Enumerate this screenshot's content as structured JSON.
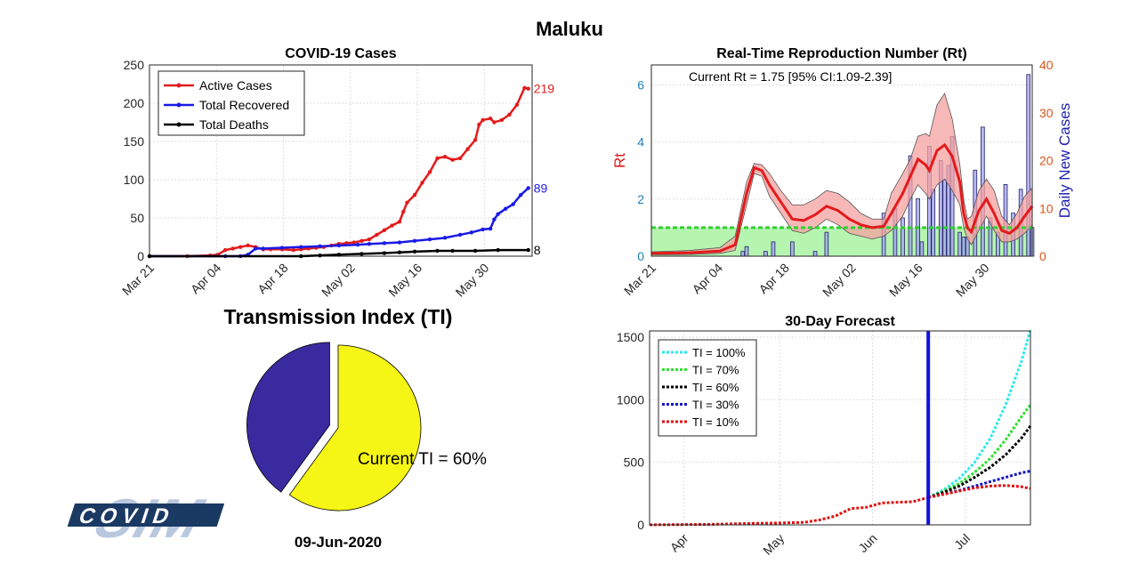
{
  "page": {
    "title": "Maluku",
    "date": "09-Jun-2020",
    "logo_text": "COVID"
  },
  "colors": {
    "active": "#e31a1c",
    "recovered": "#1a1ae6",
    "deaths": "#000000",
    "rt": "#e31a1c",
    "band": "#f4a0a0",
    "cases_bar": "#a0a0f0",
    "threshold": "#2fd12f",
    "threshold_fill": "#b5f5b0",
    "pie_a": "#3a2aa0",
    "pie_b": "#f5f516",
    "forecast_line": "#1010e0"
  },
  "chart_data": [
    {
      "id": "cases",
      "type": "line",
      "title": "COVID-19 Cases",
      "x_ticks": [
        "Mar 21",
        "Apr 04",
        "Apr 18",
        "May 02",
        "May 16",
        "May 30"
      ],
      "ylim": [
        0,
        250
      ],
      "y_ticks": [
        0,
        50,
        100,
        150,
        200,
        250
      ],
      "grid": true,
      "legend": "top-left",
      "series": [
        {
          "name": "Active Cases",
          "end_label": "219",
          "points": [
            [
              0,
              0
            ],
            [
              10,
              0
            ],
            [
              16,
              1
            ],
            [
              18,
              2
            ],
            [
              20,
              8
            ],
            [
              22,
              10
            ],
            [
              24,
              12
            ],
            [
              26,
              14
            ],
            [
              28,
              12
            ],
            [
              30,
              9
            ],
            [
              32,
              9
            ],
            [
              35,
              9
            ],
            [
              38,
              8
            ],
            [
              40,
              9
            ],
            [
              42,
              10
            ],
            [
              44,
              11
            ],
            [
              46,
              12
            ],
            [
              48,
              14
            ],
            [
              50,
              16
            ],
            [
              52,
              17
            ],
            [
              54,
              18
            ],
            [
              56,
              20
            ],
            [
              58,
              22
            ],
            [
              60,
              28
            ],
            [
              62,
              34
            ],
            [
              64,
              40
            ],
            [
              66,
              45
            ],
            [
              67,
              58
            ],
            [
              68,
              70
            ],
            [
              70,
              80
            ],
            [
              72,
              96
            ],
            [
              74,
              110
            ],
            [
              76,
              128
            ],
            [
              78,
              130
            ],
            [
              80,
              126
            ],
            [
              82,
              128
            ],
            [
              84,
              140
            ],
            [
              86,
              152
            ],
            [
              87,
              172
            ],
            [
              88,
              178
            ],
            [
              90,
              180
            ],
            [
              91,
              175
            ],
            [
              93,
              178
            ],
            [
              95,
              185
            ],
            [
              97,
              198
            ],
            [
              99,
              220
            ],
            [
              100,
              219
            ]
          ]
        },
        {
          "name": "Total Recovered",
          "end_label": "89",
          "points": [
            [
              0,
              0
            ],
            [
              20,
              0
            ],
            [
              24,
              0
            ],
            [
              26,
              2
            ],
            [
              28,
              10
            ],
            [
              30,
              10
            ],
            [
              35,
              11
            ],
            [
              40,
              12
            ],
            [
              45,
              13
            ],
            [
              50,
              14
            ],
            [
              55,
              15
            ],
            [
              58,
              16
            ],
            [
              62,
              17
            ],
            [
              66,
              18
            ],
            [
              70,
              20
            ],
            [
              74,
              22
            ],
            [
              78,
              24
            ],
            [
              82,
              28
            ],
            [
              85,
              31
            ],
            [
              88,
              35
            ],
            [
              90,
              36
            ],
            [
              91,
              48
            ],
            [
              92,
              55
            ],
            [
              94,
              62
            ],
            [
              96,
              68
            ],
            [
              98,
              80
            ],
            [
              100,
              89
            ]
          ]
        },
        {
          "name": "Total Deaths",
          "end_label": "8",
          "points": [
            [
              0,
              0
            ],
            [
              40,
              0
            ],
            [
              45,
              1
            ],
            [
              50,
              2
            ],
            [
              56,
              3
            ],
            [
              62,
              4
            ],
            [
              66,
              5
            ],
            [
              70,
              6
            ],
            [
              76,
              7
            ],
            [
              80,
              7
            ],
            [
              86,
              7
            ],
            [
              92,
              8
            ],
            [
              100,
              8
            ]
          ]
        }
      ]
    },
    {
      "id": "rt",
      "type": "line",
      "title": "Real-Time Reproduction Number (Rt)",
      "annotation": "Current Rt = 1.75 [95% CI:1.09-2.39]",
      "x_ticks": [
        "Mar 21",
        "Apr 04",
        "Apr 18",
        "May 02",
        "May 16",
        "May 30"
      ],
      "ylabel_left": "Rt",
      "ylabel_right": "Daily New Cases",
      "ylim_left": [
        0,
        6.7
      ],
      "y_ticks_left": [
        0,
        2,
        4,
        6
      ],
      "ylim_right": [
        0,
        40
      ],
      "y_ticks_right": [
        0,
        10,
        20,
        30,
        40
      ],
      "threshold": 1,
      "rt": [
        [
          0,
          0.1
        ],
        [
          10,
          0.12
        ],
        [
          18,
          0.18
        ],
        [
          22,
          0.4
        ],
        [
          25,
          2.2
        ],
        [
          27,
          3.1
        ],
        [
          29,
          3.0
        ],
        [
          31,
          2.5
        ],
        [
          34,
          1.9
        ],
        [
          37,
          1.3
        ],
        [
          40,
          1.25
        ],
        [
          43,
          1.45
        ],
        [
          46,
          1.75
        ],
        [
          49,
          1.6
        ],
        [
          52,
          1.3
        ],
        [
          55,
          1.1
        ],
        [
          58,
          1.0
        ],
        [
          61,
          1.05
        ],
        [
          63,
          1.5
        ],
        [
          66,
          2.2
        ],
        [
          68,
          2.8
        ],
        [
          70,
          3.4
        ],
        [
          72,
          3.2
        ],
        [
          73,
          3.0
        ],
        [
          75,
          3.7
        ],
        [
          77,
          3.9
        ],
        [
          79,
          3.5
        ],
        [
          81,
          2.6
        ],
        [
          82,
          1.5
        ],
        [
          83,
          1.0
        ],
        [
          84,
          0.85
        ],
        [
          86,
          1.6
        ],
        [
          88,
          2.0
        ],
        [
          90,
          1.5
        ],
        [
          92,
          0.9
        ],
        [
          94,
          0.8
        ],
        [
          96,
          1.0
        ],
        [
          98,
          1.4
        ],
        [
          100,
          1.75
        ]
      ],
      "rt_upper": [
        [
          0,
          0.15
        ],
        [
          10,
          0.2
        ],
        [
          18,
          0.3
        ],
        [
          22,
          0.7
        ],
        [
          25,
          2.6
        ],
        [
          27,
          3.25
        ],
        [
          29,
          3.2
        ],
        [
          31,
          2.9
        ],
        [
          34,
          2.3
        ],
        [
          37,
          1.8
        ],
        [
          40,
          1.8
        ],
        [
          43,
          2.0
        ],
        [
          46,
          2.3
        ],
        [
          49,
          2.2
        ],
        [
          52,
          1.9
        ],
        [
          55,
          1.5
        ],
        [
          58,
          1.3
        ],
        [
          61,
          1.3
        ],
        [
          63,
          2.2
        ],
        [
          66,
          2.9
        ],
        [
          68,
          3.4
        ],
        [
          70,
          4.2
        ],
        [
          72,
          4.3
        ],
        [
          73,
          4.2
        ],
        [
          75,
          5.3
        ],
        [
          77,
          5.7
        ],
        [
          79,
          4.8
        ],
        [
          81,
          3.2
        ],
        [
          82,
          2.0
        ],
        [
          83,
          1.3
        ],
        [
          84,
          1.4
        ],
        [
          86,
          2.3
        ],
        [
          88,
          2.7
        ],
        [
          90,
          2.3
        ],
        [
          92,
          1.4
        ],
        [
          94,
          1.1
        ],
        [
          96,
          1.5
        ],
        [
          98,
          2.1
        ],
        [
          100,
          2.39
        ]
      ],
      "rt_lower": [
        [
          0,
          0.05
        ],
        [
          10,
          0.06
        ],
        [
          18,
          0.1
        ],
        [
          22,
          0.2
        ],
        [
          25,
          1.8
        ],
        [
          27,
          2.9
        ],
        [
          29,
          2.8
        ],
        [
          31,
          2.1
        ],
        [
          34,
          1.5
        ],
        [
          37,
          0.9
        ],
        [
          40,
          0.8
        ],
        [
          43,
          1.0
        ],
        [
          46,
          1.3
        ],
        [
          49,
          1.1
        ],
        [
          52,
          0.8
        ],
        [
          55,
          0.7
        ],
        [
          58,
          0.6
        ],
        [
          61,
          0.7
        ],
        [
          63,
          0.9
        ],
        [
          66,
          1.4
        ],
        [
          68,
          2.0
        ],
        [
          70,
          2.5
        ],
        [
          72,
          2.2
        ],
        [
          73,
          2.0
        ],
        [
          75,
          2.5
        ],
        [
          77,
          2.7
        ],
        [
          79,
          2.3
        ],
        [
          81,
          1.8
        ],
        [
          82,
          1.0
        ],
        [
          83,
          0.6
        ],
        [
          84,
          0.4
        ],
        [
          86,
          0.9
        ],
        [
          88,
          1.4
        ],
        [
          90,
          0.9
        ],
        [
          92,
          0.5
        ],
        [
          94,
          0.5
        ],
        [
          96,
          0.6
        ],
        [
          98,
          0.8
        ],
        [
          100,
          1.09
        ]
      ],
      "daily_cases": [
        [
          24,
          1
        ],
        [
          25,
          2
        ],
        [
          30,
          1
        ],
        [
          32,
          3
        ],
        [
          37,
          3
        ],
        [
          43,
          1
        ],
        [
          46,
          5
        ],
        [
          61,
          9
        ],
        [
          64,
          10
        ],
        [
          66,
          8
        ],
        [
          68,
          21
        ],
        [
          70,
          12
        ],
        [
          71,
          3
        ],
        [
          73,
          23
        ],
        [
          74,
          14
        ],
        [
          76,
          20
        ],
        [
          77,
          16
        ],
        [
          78,
          19
        ],
        [
          79,
          25
        ],
        [
          81,
          5
        ],
        [
          82,
          4
        ],
        [
          83,
          4
        ],
        [
          85,
          18
        ],
        [
          87,
          27
        ],
        [
          89,
          8
        ],
        [
          91,
          5
        ],
        [
          93,
          15
        ],
        [
          95,
          9
        ],
        [
          97,
          14
        ],
        [
          99,
          38
        ],
        [
          100,
          6
        ]
      ]
    },
    {
      "id": "forecast",
      "type": "line",
      "title": "30-Day Forecast",
      "x_ticks": [
        "Apr",
        "May",
        "Jun",
        "Jul"
      ],
      "ylim": [
        0,
        1550
      ],
      "y_ticks": [
        0,
        500,
        1000,
        1500
      ],
      "legend": "top-left",
      "current_marker": "Jun 09",
      "history": [
        [
          0,
          0
        ],
        [
          10,
          2
        ],
        [
          20,
          4
        ],
        [
          30,
          10
        ],
        [
          40,
          14
        ],
        [
          50,
          20
        ],
        [
          55,
          40
        ],
        [
          60,
          70
        ],
        [
          65,
          130
        ],
        [
          70,
          140
        ],
        [
          75,
          175
        ],
        [
          80,
          180
        ],
        [
          85,
          185
        ],
        [
          88,
          205
        ],
        [
          90,
          219
        ]
      ],
      "series": [
        {
          "name": "TI = 100%",
          "color": "#2be8ef",
          "points": [
            [
              90,
              219
            ],
            [
              95,
              280
            ],
            [
              100,
              370
            ],
            [
              105,
              500
            ],
            [
              110,
              690
            ],
            [
              115,
              960
            ],
            [
              120,
              1300
            ],
            [
              123,
              1560
            ]
          ]
        },
        {
          "name": "TI = 70%",
          "color": "#2fe02f",
          "points": [
            [
              90,
              219
            ],
            [
              95,
              270
            ],
            [
              100,
              330
            ],
            [
              105,
              420
            ],
            [
              110,
              530
            ],
            [
              115,
              680
            ],
            [
              120,
              860
            ],
            [
              123,
              960
            ]
          ]
        },
        {
          "name": "TI = 60%",
          "color": "#000000",
          "points": [
            [
              90,
              219
            ],
            [
              95,
              260
            ],
            [
              100,
              310
            ],
            [
              105,
              380
            ],
            [
              110,
              460
            ],
            [
              115,
              560
            ],
            [
              120,
              690
            ],
            [
              123,
              790
            ]
          ]
        },
        {
          "name": "TI = 30%",
          "color": "#1515c0",
          "points": [
            [
              90,
              219
            ],
            [
              95,
              245
            ],
            [
              100,
              275
            ],
            [
              105,
              310
            ],
            [
              110,
              345
            ],
            [
              115,
              380
            ],
            [
              120,
              415
            ],
            [
              123,
              430
            ]
          ]
        },
        {
          "name": "TI = 10%",
          "color": "#e01010",
          "points": [
            [
              90,
              219
            ],
            [
              95,
              245
            ],
            [
              100,
              270
            ],
            [
              105,
              295
            ],
            [
              110,
              310
            ],
            [
              115,
              315
            ],
            [
              120,
              305
            ],
            [
              123,
              290
            ]
          ]
        }
      ]
    },
    {
      "id": "ti",
      "type": "pie",
      "title": "Transmission Index (TI)",
      "slices": [
        {
          "label": "Current TI = 60%",
          "value": 60
        },
        {
          "label": "",
          "value": 40
        }
      ]
    }
  ]
}
